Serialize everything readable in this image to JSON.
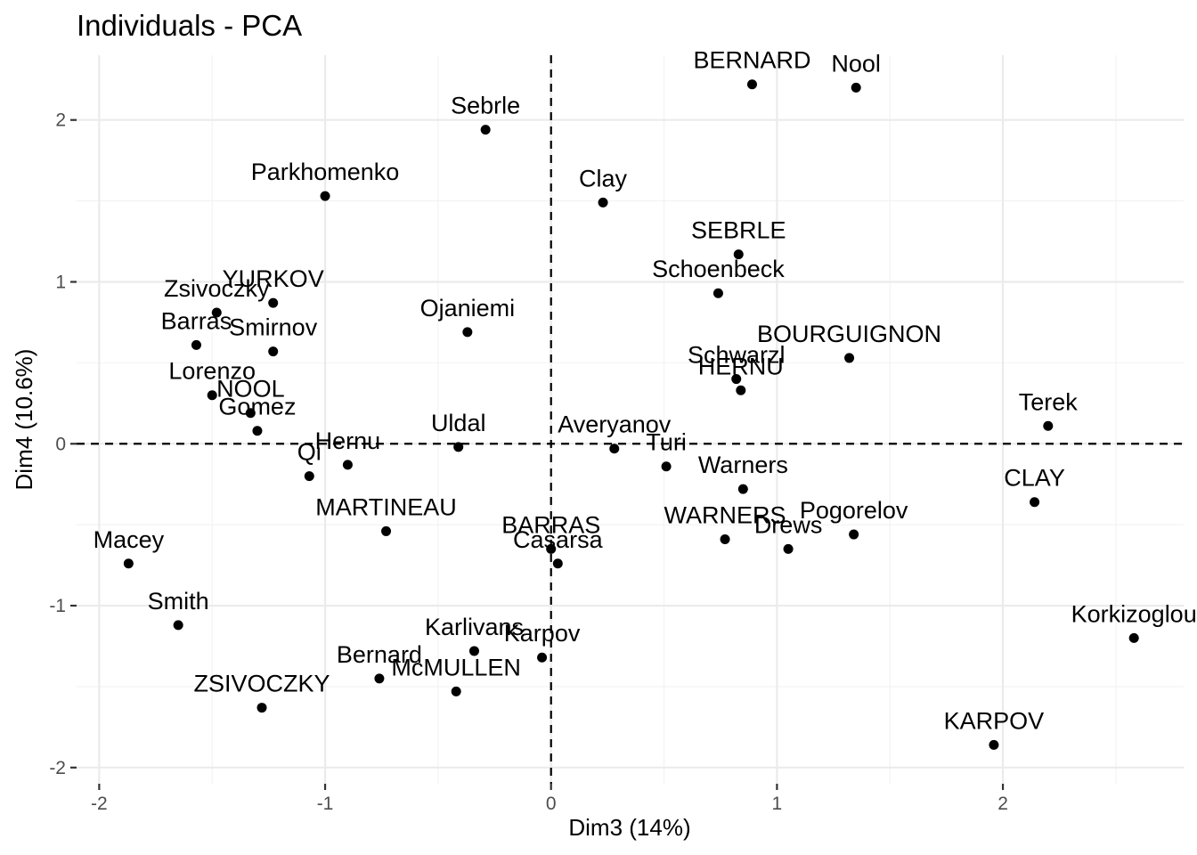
{
  "chart_data": {
    "type": "scatter",
    "title": "Individuals - PCA",
    "xlabel": "Dim3 (14%)",
    "ylabel": "Dim4 (10.6%)",
    "xlim": [
      -2.1,
      2.8
    ],
    "ylim": [
      -2.1,
      2.4
    ],
    "x_ticks": [
      -2,
      -1,
      0,
      1,
      2
    ],
    "y_ticks": [
      -2,
      -1,
      0,
      1,
      2
    ],
    "grid": true,
    "reference_lines": {
      "x": 0,
      "y": 0,
      "style": "dashed"
    },
    "points": [
      {
        "label": "BERNARD",
        "x": 0.89,
        "y": 2.22
      },
      {
        "label": "Nool",
        "x": 1.35,
        "y": 2.2
      },
      {
        "label": "Sebrle",
        "x": -0.29,
        "y": 1.94
      },
      {
        "label": "Parkhomenko",
        "x": -1.0,
        "y": 1.53
      },
      {
        "label": "Clay",
        "x": 0.23,
        "y": 1.49
      },
      {
        "label": "SEBRLE",
        "x": 0.83,
        "y": 1.17
      },
      {
        "label": "Schoenbeck",
        "x": 0.74,
        "y": 0.93
      },
      {
        "label": "YURKOV",
        "x": -1.23,
        "y": 0.87
      },
      {
        "label": "Zsivoczky",
        "x": -1.48,
        "y": 0.81
      },
      {
        "label": "Ojaniemi",
        "x": -0.37,
        "y": 0.69
      },
      {
        "label": "Barras",
        "x": -1.57,
        "y": 0.61
      },
      {
        "label": "Smirnov",
        "x": -1.23,
        "y": 0.57
      },
      {
        "label": "BOURGUIGNON",
        "x": 1.32,
        "y": 0.53
      },
      {
        "label": "Schwarzl",
        "x": 0.82,
        "y": 0.4
      },
      {
        "label": "HERNU",
        "x": 0.84,
        "y": 0.33
      },
      {
        "label": "Lorenzo",
        "x": -1.5,
        "y": 0.3
      },
      {
        "label": "NOOL",
        "x": -1.33,
        "y": 0.19
      },
      {
        "label": "Terek",
        "x": 2.2,
        "y": 0.11
      },
      {
        "label": "Gomez",
        "x": -1.3,
        "y": 0.08
      },
      {
        "label": "Uldal",
        "x": -0.41,
        "y": -0.02
      },
      {
        "label": "Averyanov",
        "x": 0.28,
        "y": -0.03
      },
      {
        "label": "Hernu",
        "x": -0.9,
        "y": -0.13
      },
      {
        "label": "Turi",
        "x": 0.51,
        "y": -0.14
      },
      {
        "label": "Qi",
        "x": -1.07,
        "y": -0.2
      },
      {
        "label": "Warners",
        "x": 0.85,
        "y": -0.28
      },
      {
        "label": "CLAY",
        "x": 2.14,
        "y": -0.36
      },
      {
        "label": "MARTINEAU",
        "x": -0.73,
        "y": -0.54
      },
      {
        "label": "Pogorelov",
        "x": 1.34,
        "y": -0.56
      },
      {
        "label": "WARNERS",
        "x": 0.77,
        "y": -0.59
      },
      {
        "label": "BARRAS",
        "x": 0.0,
        "y": -0.65
      },
      {
        "label": "Drews",
        "x": 1.05,
        "y": -0.65
      },
      {
        "label": "Casarsa",
        "x": 0.03,
        "y": -0.74
      },
      {
        "label": "Macey",
        "x": -1.87,
        "y": -0.74
      },
      {
        "label": "Smith",
        "x": -1.65,
        "y": -1.12
      },
      {
        "label": "Korkizoglou",
        "x": 2.58,
        "y": -1.2
      },
      {
        "label": "Karlivans",
        "x": -0.34,
        "y": -1.28
      },
      {
        "label": "Karpov",
        "x": -0.04,
        "y": -1.32
      },
      {
        "label": "Bernard",
        "x": -0.76,
        "y": -1.45
      },
      {
        "label": "McMULLEN",
        "x": -0.42,
        "y": -1.53
      },
      {
        "label": "ZSIVOCZKY",
        "x": -1.28,
        "y": -1.63
      },
      {
        "label": "KARPOV",
        "x": 1.96,
        "y": -1.86
      }
    ]
  }
}
